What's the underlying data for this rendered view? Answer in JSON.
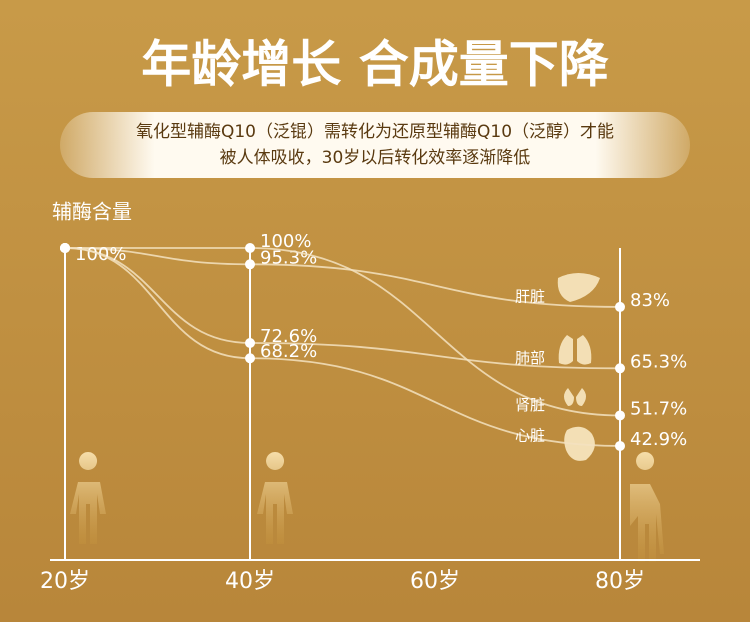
{
  "chart_data": {
    "type": "line",
    "title": "年龄增长 合成量下降",
    "subtitle": [
      "氧化型辅酶Q10（泛锟）需转化为还原型辅酶Q10（泛醇）才能",
      "被人体吸收，30岁以后转化效率逐渐降低"
    ],
    "y_axis_label": "辅酶含量",
    "x": [
      20,
      40,
      80
    ],
    "xlim": [
      20,
      80
    ],
    "xticks": [
      {
        "value": 20,
        "label": "20岁"
      },
      {
        "value": 40,
        "label": "40岁"
      },
      {
        "value": 60,
        "label": "60岁"
      },
      {
        "value": 80,
        "label": "80岁"
      }
    ],
    "ylim": [
      10,
      100
    ],
    "series": [
      {
        "name": "肝脏",
        "color": "#f3e2c0",
        "values": [
          100,
          95.3,
          83
        ],
        "value_labels": [
          null,
          "95.3%",
          "83%"
        ]
      },
      {
        "name": "肺部",
        "color": "#f3e2c0",
        "values": [
          100,
          72.6,
          65.3
        ],
        "value_labels": [
          null,
          "72.6%",
          "65.3%"
        ]
      },
      {
        "name": "肾脏",
        "color": "#f3e2c0",
        "values": [
          100,
          100,
          51.7
        ],
        "value_labels": [
          "100%",
          "100%",
          "51.7%"
        ]
      },
      {
        "name": "心脏",
        "color": "#f3e2c0",
        "values": [
          100,
          68.2,
          42.9
        ],
        "value_labels": [
          null,
          "68.2%",
          "42.9%"
        ]
      }
    ]
  }
}
